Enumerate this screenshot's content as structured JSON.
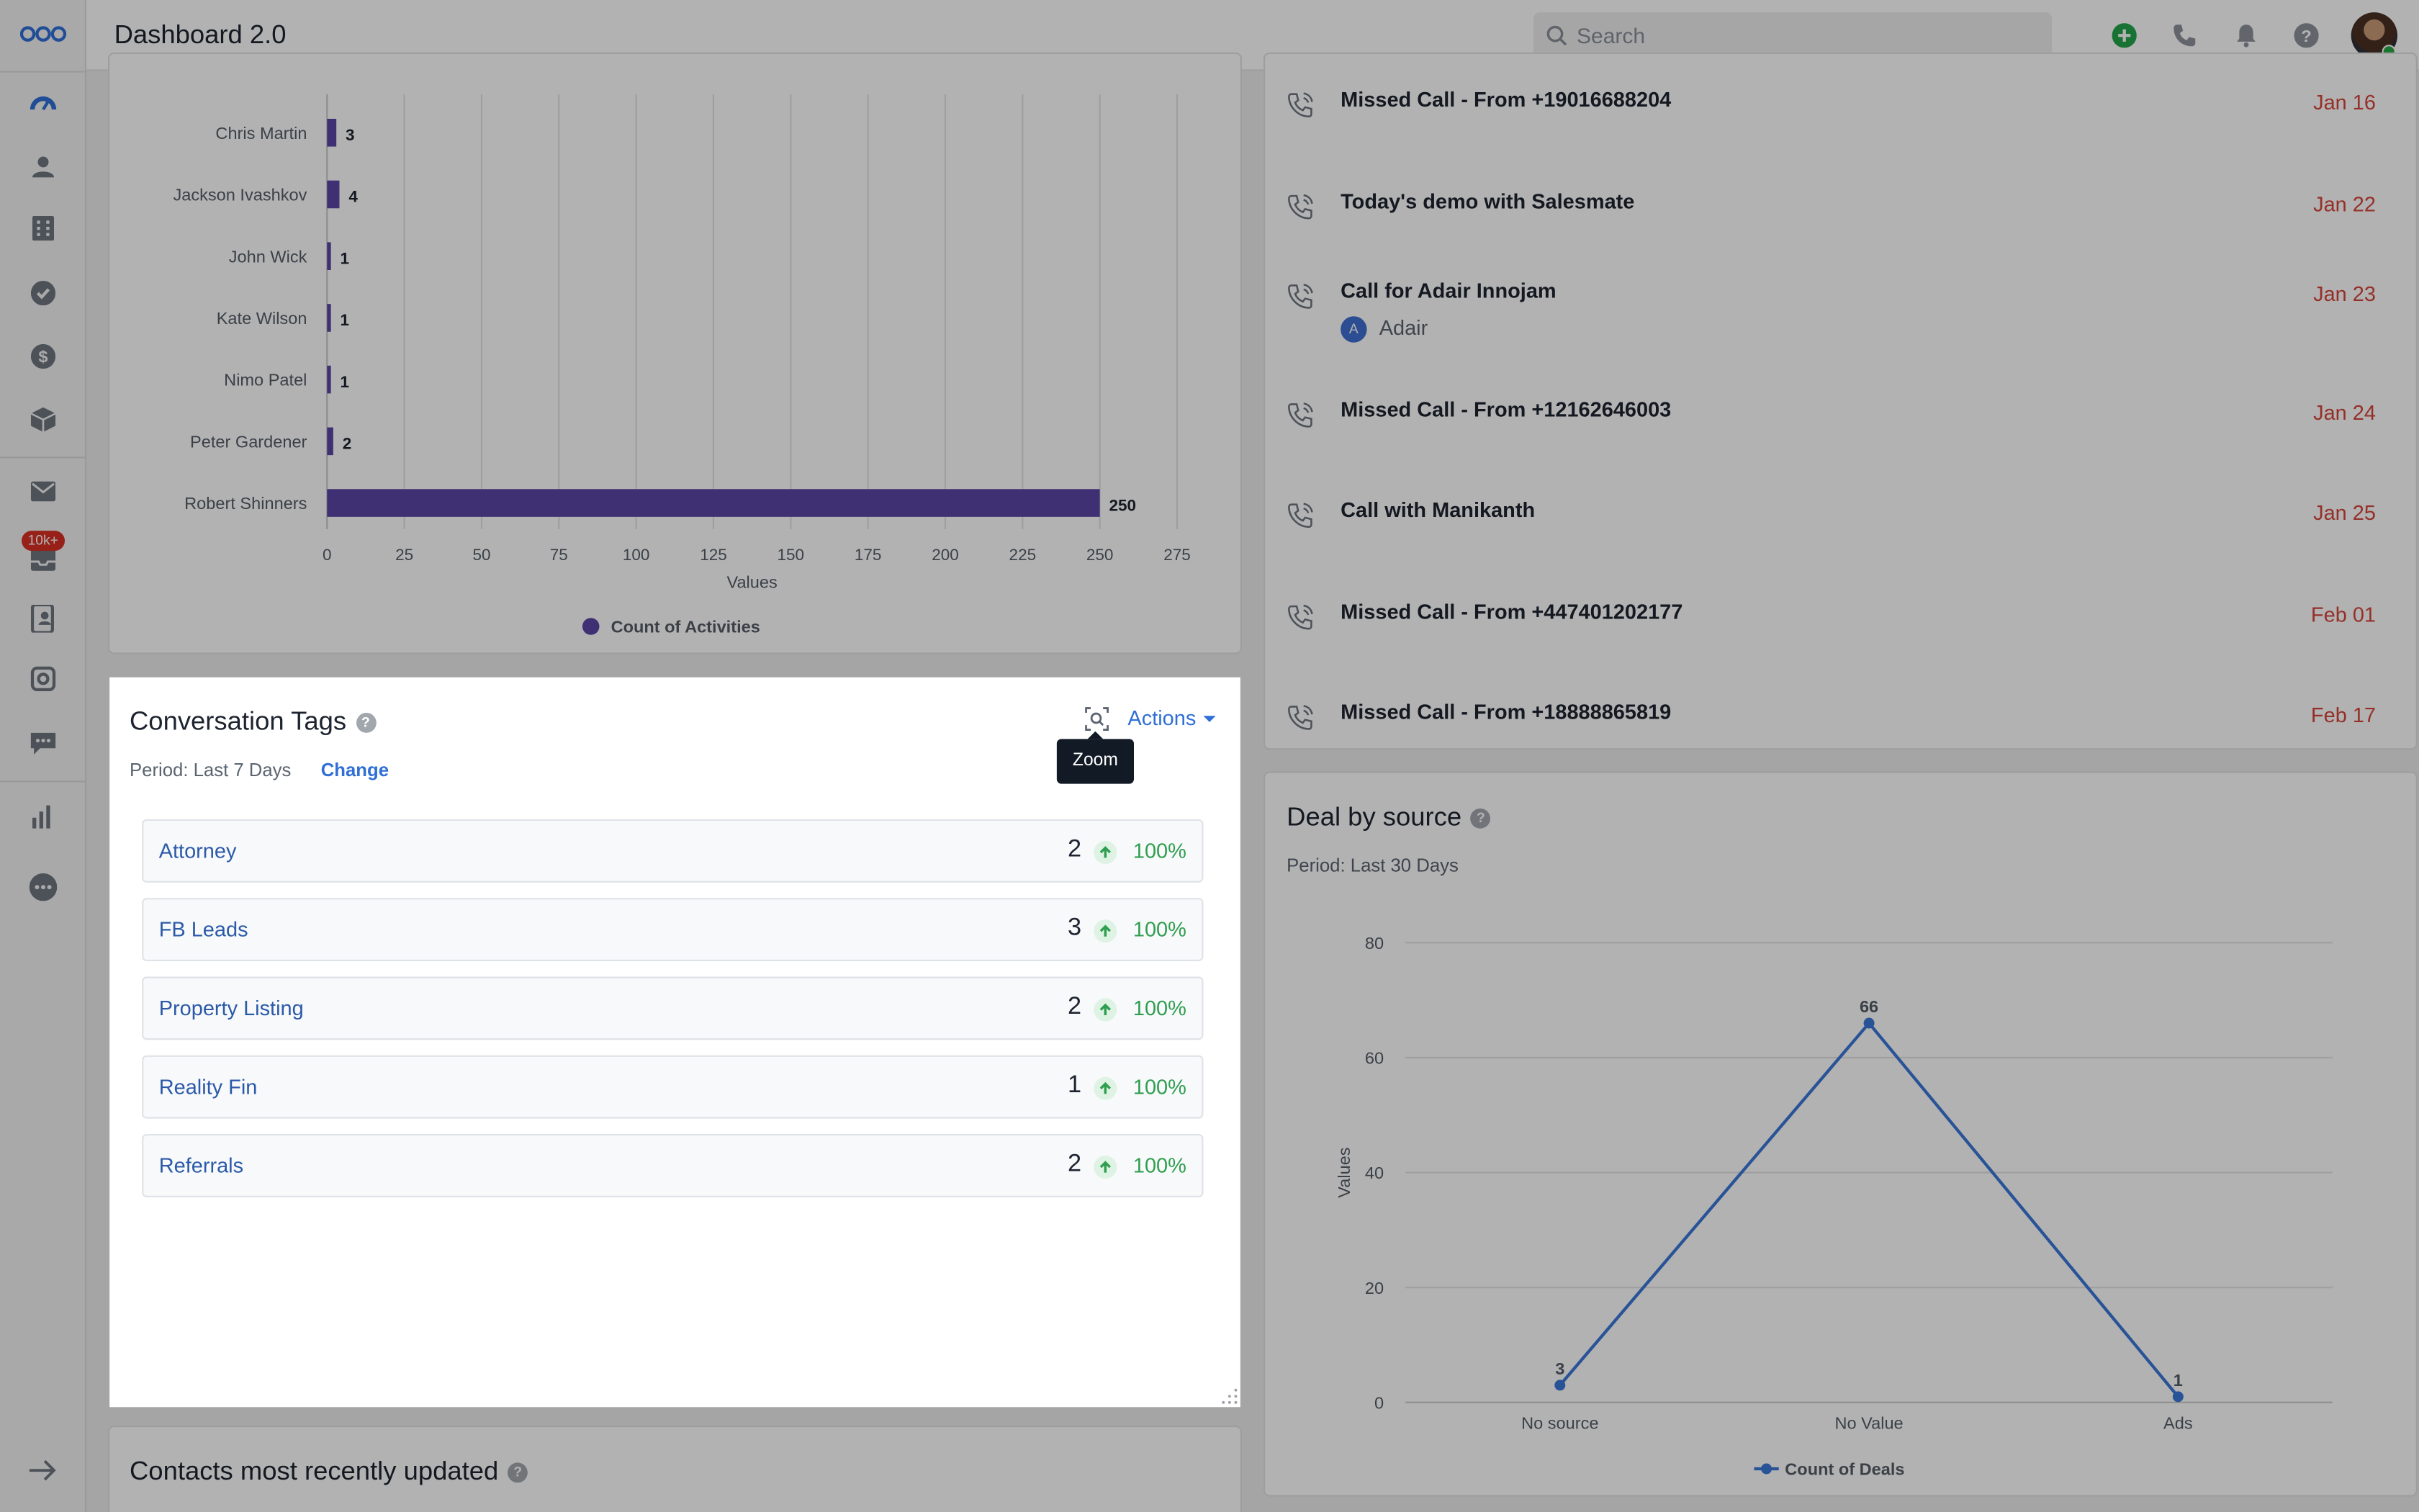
{
  "header": {
    "title": "Dashboard 2.0",
    "search_placeholder": "Search",
    "icons": [
      "add-icon",
      "phone-icon",
      "bell-icon",
      "help-icon",
      "avatar"
    ]
  },
  "sidebar": {
    "badge": "10k+",
    "items": [
      "dashboard-icon",
      "contacts-icon",
      "companies-icon",
      "tasks-icon",
      "deals-icon",
      "products-icon",
      "email-icon",
      "inbox-icon",
      "contacts-book-icon",
      "automation-icon",
      "chat-icon",
      "reports-icon",
      "more-icon"
    ]
  },
  "activities_chart": {
    "legend": "Count of Activities",
    "xlabel": "Values"
  },
  "chart_data": [
    {
      "type": "bar",
      "orientation": "horizontal",
      "categories": [
        "Chris Martin",
        "Jackson Ivashkov",
        "John Wick",
        "Kate Wilson",
        "Nimo Patel",
        "Peter Gardener",
        "Robert Shinners"
      ],
      "series": [
        {
          "name": "Count of Activities",
          "values": [
            3,
            4,
            1,
            1,
            1,
            2,
            250
          ]
        }
      ],
      "xlabel": "Values",
      "xlim": [
        0,
        275
      ],
      "xticks": [
        0,
        25,
        50,
        75,
        100,
        125,
        150,
        175,
        200,
        225,
        250,
        275
      ],
      "grid": true,
      "legend": "bottom",
      "color": "#5b45a6"
    },
    {
      "type": "line",
      "title": "Deal by source",
      "categories": [
        "No source",
        "No Value",
        "Ads"
      ],
      "series": [
        {
          "name": "Count of Deals",
          "values": [
            3,
            66,
            1
          ]
        }
      ],
      "ylabel": "Values",
      "ylim": [
        0,
        80
      ],
      "yticks": [
        0,
        20,
        40,
        60,
        80
      ],
      "grid": true,
      "legend": "bottom",
      "color": "#3b78d8"
    }
  ],
  "activities": [
    {
      "title": "Missed Call - From +19016688204",
      "date": "Jan 16"
    },
    {
      "title": "Today's demo with Salesmate",
      "date": "Jan 22"
    },
    {
      "title": "Call for Adair Innojam",
      "date": "Jan 23",
      "contact_initial": "A",
      "contact": "Adair"
    },
    {
      "title": "Missed Call - From +12162646003",
      "date": "Jan 24"
    },
    {
      "title": "Call with Manikanth",
      "date": "Jan 25"
    },
    {
      "title": "Missed Call - From +447401202177",
      "date": "Feb 01"
    },
    {
      "title": "Missed Call - From +18888865819",
      "date": "Feb 17"
    }
  ],
  "conversation_tags": {
    "title": "Conversation Tags",
    "period": "Period: Last 7 Days",
    "change_label": "Change",
    "actions_label": "Actions",
    "zoom_tooltip": "Zoom",
    "rows": [
      {
        "name": "Attorney",
        "count": "2",
        "pct": "100%"
      },
      {
        "name": "FB Leads",
        "count": "3",
        "pct": "100%"
      },
      {
        "name": "Property Listing",
        "count": "2",
        "pct": "100%"
      },
      {
        "name": "Reality Fin",
        "count": "1",
        "pct": "100%"
      },
      {
        "name": "Referrals",
        "count": "2",
        "pct": "100%"
      }
    ]
  },
  "deal_by_source": {
    "title": "Deal by source",
    "period": "Period: Last 30 Days",
    "legend": "Count of Deals",
    "ylabel": "Values"
  },
  "contacts_card": {
    "title": "Contacts most recently updated"
  }
}
